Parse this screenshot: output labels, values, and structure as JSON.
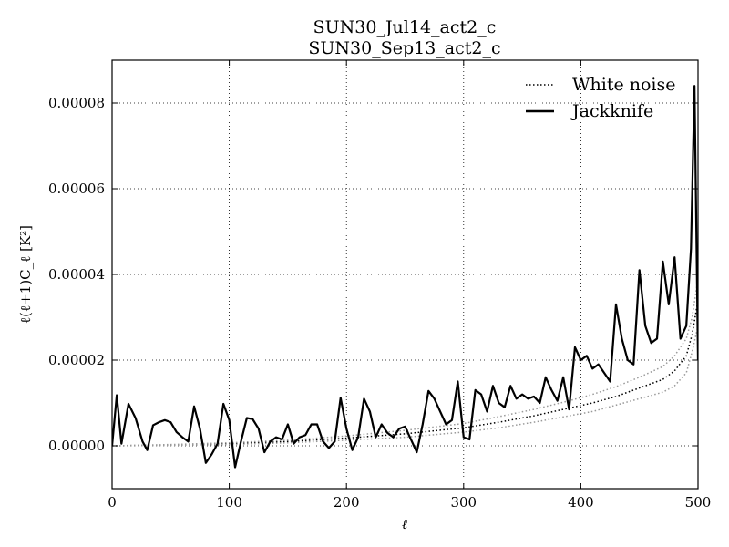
{
  "chart_data": {
    "type": "line",
    "title_lines": [
      "SUN30_Jul14_act2_c",
      "SUN30_Sep13_act2_c"
    ],
    "xlabel": "ℓ",
    "ylabel": "ℓ(ℓ+1)C_ℓ [K²]",
    "xlim": [
      0,
      500
    ],
    "ylim": [
      -1e-05,
      9e-05
    ],
    "x_ticks": [
      0,
      100,
      200,
      300,
      400,
      500
    ],
    "x_tick_labels": [
      "0",
      "100",
      "200",
      "300",
      "400",
      "500"
    ],
    "y_ticks": [
      0,
      2e-05,
      4e-05,
      6e-05,
      8e-05
    ],
    "y_tick_labels": [
      "0.00000",
      "0.00002",
      "0.00004",
      "0.00008"
    ],
    "y_tick_labels_full": [
      "0.00000",
      "0.00002",
      "0.00004",
      "0.00006",
      "0.00008"
    ],
    "grid": true,
    "legend_position": "top-right",
    "series": [
      {
        "name": "White noise",
        "style": "dotted",
        "color": "#000000",
        "x": [
          0,
          50,
          100,
          150,
          200,
          250,
          300,
          330,
          360,
          390,
          410,
          430,
          450,
          470,
          480,
          490,
          495,
          500
        ],
        "y": [
          0,
          2e-07,
          5e-07,
          1e-06,
          1.8e-06,
          2.8e-06,
          4.2e-06,
          5.5e-06,
          7e-06,
          8.8e-06,
          1e-05,
          1.15e-05,
          1.35e-05,
          1.55e-05,
          1.75e-05,
          2.1e-05,
          2.6e-05,
          3.4e-05
        ]
      },
      {
        "name": "",
        "style": "dotted",
        "color": "#999999",
        "x": [
          0,
          50,
          100,
          150,
          200,
          250,
          300,
          330,
          360,
          390,
          410,
          430,
          450,
          470,
          480,
          490,
          495,
          500
        ],
        "y": [
          0,
          1e-07,
          3e-07,
          7e-07,
          1.3e-06,
          2e-06,
          3.2e-06,
          4.2e-06,
          5.5e-06,
          7e-06,
          8e-06,
          9.5e-06,
          1.1e-05,
          1.25e-05,
          1.4e-05,
          1.7e-05,
          2.2e-05,
          2.8e-05
        ]
      },
      {
        "name": "",
        "style": "dotted",
        "color": "#999999",
        "x": [
          0,
          50,
          100,
          150,
          200,
          250,
          300,
          330,
          360,
          390,
          410,
          430,
          450,
          470,
          480,
          490,
          495,
          500
        ],
        "y": [
          0,
          3e-07,
          7e-07,
          1.3e-06,
          2.3e-06,
          3.6e-06,
          5.2e-06,
          6.8e-06,
          8.5e-06,
          1.05e-05,
          1.2e-05,
          1.38e-05,
          1.6e-05,
          1.85e-05,
          2.1e-05,
          2.5e-05,
          3e-05,
          3.9e-05
        ]
      },
      {
        "name": "Jackknife",
        "style": "solid",
        "color": "#000000",
        "x": [
          0,
          4,
          8,
          14,
          20,
          26,
          30,
          35,
          40,
          45,
          50,
          55,
          60,
          65,
          70,
          75,
          80,
          85,
          90,
          95,
          100,
          105,
          110,
          115,
          120,
          125,
          130,
          135,
          140,
          145,
          150,
          155,
          160,
          165,
          170,
          175,
          180,
          185,
          190,
          195,
          200,
          205,
          210,
          215,
          220,
          225,
          230,
          235,
          240,
          245,
          250,
          255,
          260,
          265,
          270,
          275,
          280,
          285,
          290,
          295,
          300,
          305,
          310,
          315,
          320,
          325,
          330,
          335,
          340,
          345,
          350,
          355,
          360,
          365,
          370,
          375,
          380,
          385,
          390,
          395,
          400,
          405,
          410,
          415,
          420,
          425,
          430,
          435,
          440,
          445,
          450,
          455,
          460,
          465,
          470,
          475,
          480,
          485,
          490,
          494,
          497,
          500
        ],
        "y": [
          0,
          1.18e-05,
          5e-07,
          9.8e-06,
          6.5e-06,
          1e-06,
          -1e-06,
          4.8e-06,
          5.5e-06,
          6e-06,
          5.5e-06,
          3.2e-06,
          2e-06,
          1e-06,
          9.2e-06,
          4e-06,
          -4e-06,
          -2e-06,
          5e-07,
          9.8e-06,
          6e-06,
          -5e-06,
          1e-06,
          6.5e-06,
          6.2e-06,
          4e-06,
          -1.5e-06,
          1e-06,
          2e-06,
          1.5e-06,
          5e-06,
          5e-07,
          2e-06,
          2.5e-06,
          5e-06,
          5e-06,
          1e-06,
          -5e-07,
          1e-06,
          1.12e-05,
          4e-06,
          -1e-06,
          2e-06,
          1.1e-05,
          8e-06,
          2e-06,
          5e-06,
          3e-06,
          2e-06,
          4e-06,
          4.5e-06,
          1.5e-06,
          -1.5e-06,
          5e-06,
          1.28e-05,
          1.1e-05,
          8e-06,
          5e-06,
          6e-06,
          1.5e-05,
          2e-06,
          1.5e-06,
          1.3e-05,
          1.2e-05,
          8e-06,
          1.4e-05,
          1e-05,
          9e-06,
          1.4e-05,
          1.1e-05,
          1.2e-05,
          1.1e-05,
          1.15e-05,
          1e-05,
          1.6e-05,
          1.3e-05,
          1.05e-05,
          1.6e-05,
          8.5e-06,
          2.3e-05,
          2e-05,
          2.1e-05,
          1.8e-05,
          1.9e-05,
          1.7e-05,
          1.5e-05,
          3.3e-05,
          2.5e-05,
          2e-05,
          1.9e-05,
          4.1e-05,
          2.8e-05,
          2.4e-05,
          2.5e-05,
          4.3e-05,
          3.3e-05,
          4.4e-05,
          2.5e-05,
          2.8e-05,
          4.6e-05,
          8.4e-05,
          2e-05
        ]
      }
    ]
  }
}
